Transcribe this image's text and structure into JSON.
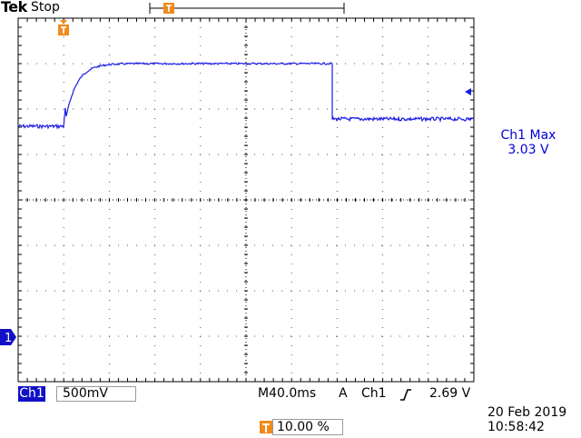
{
  "header": {
    "brand": "Tek",
    "run_state": "Stop"
  },
  "colors": {
    "trace": "#1a1ae6",
    "trigger": "#f08a1c",
    "channel_tag": "#1010c8",
    "readout": "#0000dd"
  },
  "measurement": {
    "title": "Ch1 Max",
    "value": "3.03 V"
  },
  "status_bar": {
    "channel": "Ch1",
    "scale": "500mV",
    "timebase": "M40.0ms",
    "trigger_mode": "A",
    "trigger_source": "Ch1",
    "trigger_slope_icon": "rising-edge-icon",
    "trigger_level": "2.69 V"
  },
  "trigger_position": {
    "icon": "trigger-marker-icon",
    "value": "10.00 %"
  },
  "datetime": {
    "date": "20 Feb  2019",
    "time": "10:58:42"
  },
  "markers": {
    "ground": "1"
  }
}
